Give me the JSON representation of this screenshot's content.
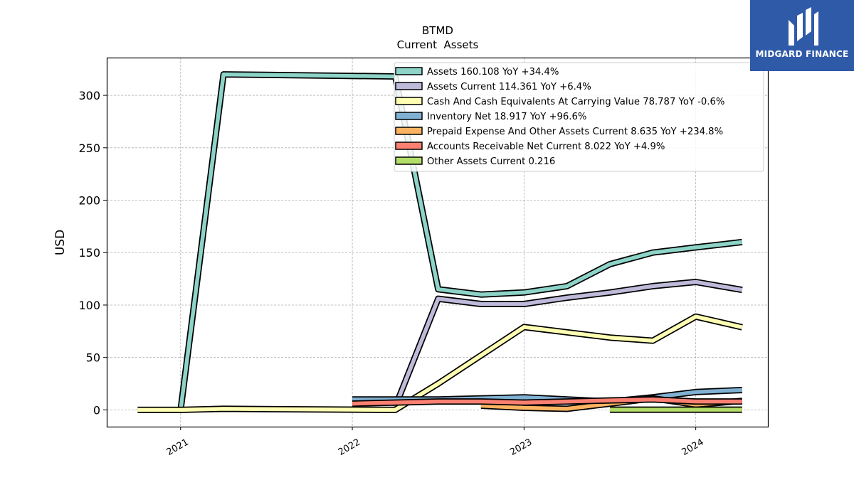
{
  "brand": {
    "name": "MIDGARD FINANCE",
    "bg_color": "#2f5aa8"
  },
  "chart_data": {
    "type": "line",
    "title": "BTMD",
    "subtitle": "Current  Assets",
    "xlabel": "",
    "ylabel": "USD",
    "xlim": [
      2020.57,
      2024.42
    ],
    "ylim": [
      -16,
      336
    ],
    "yticks": [
      0,
      50,
      100,
      150,
      200,
      250,
      300
    ],
    "xticks": [
      2021,
      2022,
      2023,
      2024
    ],
    "xtick_labels": [
      "2021",
      "2022",
      "2023",
      "2024"
    ],
    "grid": true,
    "legend_position": "top-right",
    "series": [
      {
        "name": "Assets",
        "legend": "Assets  160.108 YoY +34.4%",
        "color": "#8dd3c7",
        "x": [
          2021.0,
          2021.25,
          2022.25,
          2022.5,
          2022.75,
          2023.0,
          2023.25,
          2023.5,
          2023.75,
          2024.0,
          2024.27
        ],
        "y": [
          0,
          320,
          318,
          115,
          110,
          112,
          118,
          139,
          150,
          155,
          160.1
        ]
      },
      {
        "name": "Assets Current",
        "legend": "Assets Current  114.361 YoY +6.4%",
        "color": "#bebada",
        "x": [
          2022.25,
          2022.5,
          2022.75,
          2023.0,
          2023.25,
          2023.5,
          2023.75,
          2024.0,
          2024.27
        ],
        "y": [
          3,
          106,
          101,
          101,
          107,
          112,
          118,
          122,
          114.4
        ]
      },
      {
        "name": "Cash And Cash Equivalents At Carrying Value",
        "legend": "Cash And Cash Equivalents At Carrying Value  78.787 YoY -0.6%",
        "color": "#ffffb3",
        "x": [
          2020.75,
          2021.0,
          2021.25,
          2022.25,
          2022.5,
          2022.75,
          2023.0,
          2023.25,
          2023.5,
          2023.75,
          2024.0,
          2024.27
        ],
        "y": [
          0,
          0,
          1,
          0,
          25,
          52,
          79,
          74,
          69,
          66,
          89,
          78.8
        ]
      },
      {
        "name": "Inventory Net",
        "legend": "Inventory Net  18.917 YoY +96.6%",
        "color": "#80b1d3",
        "x": [
          2022.0,
          2022.25,
          2022.5,
          2022.75,
          2023.0,
          2023.25,
          2023.5,
          2023.75,
          2024.0,
          2024.27
        ],
        "y": [
          10,
          10,
          10,
          11,
          12,
          10,
          8,
          12,
          17,
          18.9
        ]
      },
      {
        "name": "Prepaid Expense And Other Assets Current",
        "legend": "Prepaid Expense And Other Assets Current  8.635 YoY +234.8%",
        "color": "#fdb462",
        "x": [
          2022.75,
          2023.0,
          2023.25,
          2023.5,
          2023.75,
          2024.0,
          2024.27
        ],
        "y": [
          4,
          2,
          1,
          6,
          11,
          5,
          8.6
        ]
      },
      {
        "name": "Accounts Receivable Net Current",
        "legend": "Accounts Receivable Net Current  8.022 YoY +4.9%",
        "color": "#fb8072",
        "x": [
          2022.0,
          2022.25,
          2022.5,
          2022.75,
          2023.0,
          2023.25,
          2023.5,
          2023.75,
          2024.0,
          2024.27
        ],
        "y": [
          6,
          7,
          8,
          8,
          7,
          8,
          9,
          10,
          8,
          8.0
        ]
      },
      {
        "name": "Other Assets Current",
        "legend": "Other Assets Current  0.216",
        "color": "#b3de69",
        "x": [
          2023.5,
          2023.75,
          2024.0,
          2024.27
        ],
        "y": [
          0.2,
          0.2,
          0.2,
          0.2
        ]
      }
    ]
  }
}
